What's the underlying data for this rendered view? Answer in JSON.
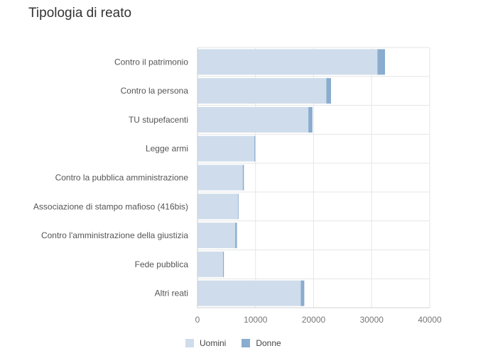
{
  "chart_data": {
    "type": "bar",
    "orientation": "horizontal",
    "stacked": true,
    "title": "Tipologia di reato",
    "xlabel": "",
    "ylabel": "",
    "xlim": [
      0,
      40000
    ],
    "xticks": [
      0,
      10000,
      20000,
      30000,
      40000
    ],
    "grid": true,
    "legend_position": "bottom",
    "categories": [
      "Contro il patrimonio",
      "Contro la persona",
      "TU stupefacenti",
      "Legge armi",
      "Contro la pubblica amministrazione",
      "Associazione di stampo mafioso (416bis)",
      "Contro l'amministrazione della giustizia",
      "Fede pubblica",
      "Altri reati"
    ],
    "series": [
      {
        "name": "Uomini",
        "color": "#cfdceb",
        "values": [
          31000,
          22200,
          19100,
          9800,
          7800,
          7000,
          6500,
          4400,
          17800
        ]
      },
      {
        "name": "Donne",
        "color": "#8aaccf",
        "values": [
          1300,
          800,
          700,
          150,
          200,
          100,
          300,
          150,
          600
        ]
      }
    ]
  }
}
